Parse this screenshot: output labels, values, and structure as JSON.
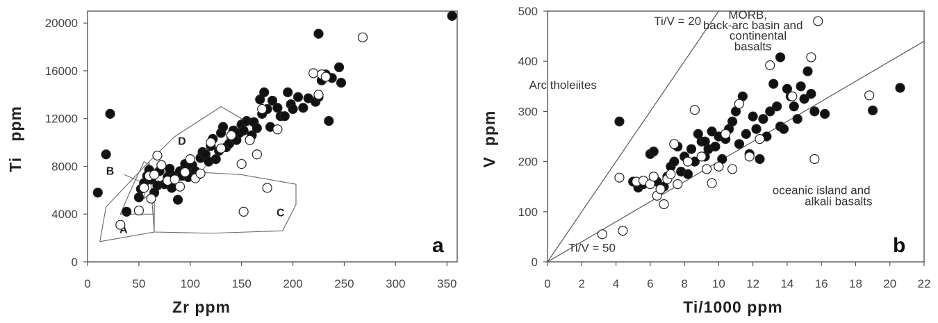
{
  "chart_data": [
    {
      "type": "scatter",
      "panel_label": "a",
      "title": "",
      "xlabel": "Zr   ppm",
      "ylabel": "Ti   ppm",
      "xlim": [
        0,
        360
      ],
      "ylim": [
        0,
        21000
      ],
      "xticks": [
        0,
        50,
        100,
        150,
        200,
        250,
        300,
        350
      ],
      "yticks": [
        0,
        4000,
        8000,
        12000,
        16000,
        20000
      ],
      "fields": [
        {
          "label": "A",
          "label_at": [
            35,
            2400
          ],
          "polygon": [
            [
              12,
              1700
            ],
            [
              18,
              4600
            ],
            [
              60,
              8400
            ],
            [
              65,
              2500
            ]
          ]
        },
        {
          "label": "B",
          "label_at": [
            22,
            7300
          ],
          "polygon": [
            [
              32,
              4000
            ],
            [
              42,
              6000
            ],
            [
              55,
              8400
            ],
            [
              65,
              7800
            ],
            [
              65,
              4000
            ]
          ]
        },
        {
          "label": "C",
          "label_at": [
            188,
            3800
          ],
          "polygon": [
            [
              65,
              2500
            ],
            [
              65,
              7500
            ],
            [
              110,
              7500
            ],
            [
              150,
              7300
            ],
            [
              203,
              6500
            ],
            [
              203,
              4800
            ],
            [
              190,
              2600
            ],
            [
              120,
              2400
            ]
          ]
        },
        {
          "label": "D",
          "label_at": [
            92,
            9800
          ],
          "polygon": [
            [
              55,
              5300
            ],
            [
              60,
              8400
            ],
            [
              85,
              10500
            ],
            [
              130,
              13000
            ],
            [
              150,
              12000
            ],
            [
              130,
              9500
            ],
            [
              110,
              7500
            ],
            [
              65,
              6000
            ]
          ]
        }
      ],
      "leader": [
        [
          36,
          7300
        ],
        [
          52,
          6700
        ]
      ],
      "series": [
        {
          "marker": "filled",
          "points": [
            [
              10,
              5800
            ],
            [
              18,
              9000
            ],
            [
              22,
              12400
            ],
            [
              38,
              4200
            ],
            [
              50,
              5400
            ],
            [
              52,
              6100
            ],
            [
              55,
              6600
            ],
            [
              58,
              7200
            ],
            [
              60,
              7700
            ],
            [
              62,
              6900
            ],
            [
              65,
              5800
            ],
            [
              68,
              6400
            ],
            [
              70,
              7600
            ],
            [
              75,
              6500
            ],
            [
              78,
              7100
            ],
            [
              80,
              7800
            ],
            [
              82,
              6200
            ],
            [
              85,
              7200
            ],
            [
              88,
              5200
            ],
            [
              90,
              7600
            ],
            [
              92,
              7200
            ],
            [
              95,
              8200
            ],
            [
              98,
              7100
            ],
            [
              100,
              7800
            ],
            [
              102,
              8100
            ],
            [
              105,
              7600
            ],
            [
              108,
              7300
            ],
            [
              110,
              8700
            ],
            [
              112,
              9200
            ],
            [
              115,
              9000
            ],
            [
              118,
              8400
            ],
            [
              120,
              9700
            ],
            [
              122,
              10300
            ],
            [
              125,
              8600
            ],
            [
              128,
              9300
            ],
            [
              130,
              10800
            ],
            [
              132,
              11300
            ],
            [
              135,
              9600
            ],
            [
              138,
              9900
            ],
            [
              140,
              10500
            ],
            [
              142,
              11000
            ],
            [
              145,
              10200
            ],
            [
              148,
              10800
            ],
            [
              150,
              11500
            ],
            [
              152,
              11000
            ],
            [
              155,
              11800
            ],
            [
              158,
              10200
            ],
            [
              160,
              10600
            ],
            [
              162,
              11700
            ],
            [
              165,
              11200
            ],
            [
              168,
              13600
            ],
            [
              170,
              12400
            ],
            [
              172,
              14200
            ],
            [
              175,
              12800
            ],
            [
              178,
              11300
            ],
            [
              180,
              13500
            ],
            [
              185,
              12900
            ],
            [
              188,
              12200
            ],
            [
              192,
              12200
            ],
            [
              195,
              14200
            ],
            [
              198,
              13200
            ],
            [
              200,
              12800
            ],
            [
              205,
              13800
            ],
            [
              210,
              12900
            ],
            [
              215,
              13700
            ],
            [
              222,
              13400
            ],
            [
              225,
              13800
            ],
            [
              228,
              15200
            ],
            [
              232,
              15700
            ],
            [
              235,
              11800
            ],
            [
              238,
              15400
            ],
            [
              245,
              16300
            ],
            [
              247,
              15000
            ],
            [
              225,
              19100
            ],
            [
              355,
              20600
            ]
          ]
        },
        {
          "marker": "open",
          "points": [
            [
              32,
              3100
            ],
            [
              50,
              4300
            ],
            [
              55,
              6200
            ],
            [
              60,
              7200
            ],
            [
              62,
              5300
            ],
            [
              65,
              7300
            ],
            [
              68,
              8900
            ],
            [
              72,
              8100
            ],
            [
              78,
              6800
            ],
            [
              85,
              6900
            ],
            [
              90,
              6300
            ],
            [
              95,
              7500
            ],
            [
              100,
              8600
            ],
            [
              105,
              7000
            ],
            [
              110,
              7400
            ],
            [
              120,
              10000
            ],
            [
              130,
              9500
            ],
            [
              140,
              10600
            ],
            [
              150,
              8200
            ],
            [
              158,
              10200
            ],
            [
              165,
              9000
            ],
            [
              170,
              12800
            ],
            [
              175,
              6200
            ],
            [
              185,
              11100
            ],
            [
              220,
              15800
            ],
            [
              225,
              14000
            ],
            [
              228,
              15700
            ],
            [
              232,
              15500
            ],
            [
              268,
              18800
            ],
            [
              152,
              4200
            ]
          ]
        }
      ]
    },
    {
      "type": "scatter",
      "panel_label": "b",
      "title": "",
      "xlabel": "Ti/1000  ppm",
      "ylabel": "V  ppm",
      "xlim": [
        0,
        22
      ],
      "ylim": [
        0,
        500
      ],
      "xticks": [
        0,
        2,
        4,
        6,
        8,
        10,
        12,
        14,
        16,
        18,
        20,
        22
      ],
      "yticks": [
        0,
        100,
        200,
        300,
        400,
        500
      ],
      "reference_lines": [
        {
          "label": "Ti/V = 20",
          "slope_v_per_ti1000": 50
        },
        {
          "label": "Ti/V = 50",
          "slope_v_per_ti1000": 20
        }
      ],
      "field_labels": [
        {
          "text": "Arc tholeiites",
          "at": [
            0.9,
            345
          ]
        },
        {
          "text": "MORB,",
          "at": [
            11.7,
            485
          ]
        },
        {
          "text": "back-arc basin and",
          "at": [
            12.0,
            464
          ]
        },
        {
          "text": "continental",
          "at": [
            12.3,
            443
          ]
        },
        {
          "text": "basalts",
          "at": [
            12.0,
            422
          ]
        },
        {
          "text": "oceanic island and",
          "at": [
            16.0,
            135
          ]
        },
        {
          "text": "alkali basalts",
          "at": [
            17.0,
            113
          ]
        }
      ],
      "line_labels": [
        {
          "text": "Ti/V = 20",
          "at": [
            7.6,
            472
          ]
        },
        {
          "text": "Ti/V = 50",
          "at": [
            2.6,
            20
          ]
        }
      ],
      "series": [
        {
          "marker": "filled",
          "points": [
            [
              4.2,
              280
            ],
            [
              5.0,
              160
            ],
            [
              5.3,
              148
            ],
            [
              5.6,
              155
            ],
            [
              6.0,
              215
            ],
            [
              6.2,
              220
            ],
            [
              6.4,
              160
            ],
            [
              6.6,
              145
            ],
            [
              6.8,
              150
            ],
            [
              7.0,
              170
            ],
            [
              7.2,
              190
            ],
            [
              7.4,
              200
            ],
            [
              7.6,
              230
            ],
            [
              7.8,
              180
            ],
            [
              8.0,
              210
            ],
            [
              8.2,
              175
            ],
            [
              8.4,
              225
            ],
            [
              8.6,
              200
            ],
            [
              8.8,
              255
            ],
            [
              9.0,
              240
            ],
            [
              9.2,
              210
            ],
            [
              9.4,
              225
            ],
            [
              9.6,
              260
            ],
            [
              9.8,
              230
            ],
            [
              10.0,
              250
            ],
            [
              10.2,
              205
            ],
            [
              10.4,
              245
            ],
            [
              10.6,
              265
            ],
            [
              10.8,
              280
            ],
            [
              11.0,
              300
            ],
            [
              11.2,
              235
            ],
            [
              11.4,
              330
            ],
            [
              11.6,
              255
            ],
            [
              11.8,
              215
            ],
            [
              12.0,
              290
            ],
            [
              12.2,
              265
            ],
            [
              12.4,
              205
            ],
            [
              12.6,
              285
            ],
            [
              12.8,
              250
            ],
            [
              13.0,
              300
            ],
            [
              13.2,
              355
            ],
            [
              13.4,
              310
            ],
            [
              13.6,
              270
            ],
            [
              13.8,
              265
            ],
            [
              14.0,
              345
            ],
            [
              14.2,
              330
            ],
            [
              14.4,
              310
            ],
            [
              14.6,
              285
            ],
            [
              14.8,
              350
            ],
            [
              15.0,
              325
            ],
            [
              15.2,
              380
            ],
            [
              15.4,
              335
            ],
            [
              15.6,
              300
            ],
            [
              16.2,
              295
            ],
            [
              13.6,
              408
            ],
            [
              19.0,
              302
            ],
            [
              20.6,
              347
            ],
            [
              9.2,
              240
            ]
          ]
        },
        {
          "marker": "open",
          "points": [
            [
              3.2,
              55
            ],
            [
              4.2,
              168
            ],
            [
              4.4,
              62
            ],
            [
              5.2,
              160
            ],
            [
              5.6,
              162
            ],
            [
              6.0,
              155
            ],
            [
              6.2,
              170
            ],
            [
              6.4,
              132
            ],
            [
              6.6,
              145
            ],
            [
              6.8,
              115
            ],
            [
              7.0,
              165
            ],
            [
              7.2,
              175
            ],
            [
              7.4,
              235
            ],
            [
              7.6,
              155
            ],
            [
              8.2,
              200
            ],
            [
              8.6,
              303
            ],
            [
              9.0,
              210
            ],
            [
              9.3,
              185
            ],
            [
              9.6,
              157
            ],
            [
              10.0,
              190
            ],
            [
              10.4,
              255
            ],
            [
              10.8,
              185
            ],
            [
              11.2,
              315
            ],
            [
              11.8,
              210
            ],
            [
              12.4,
              245
            ],
            [
              13.0,
              392
            ],
            [
              14.3,
              330
            ],
            [
              15.4,
              408
            ],
            [
              15.6,
              205
            ],
            [
              15.8,
              480
            ],
            [
              18.8,
              332
            ]
          ]
        }
      ]
    }
  ]
}
